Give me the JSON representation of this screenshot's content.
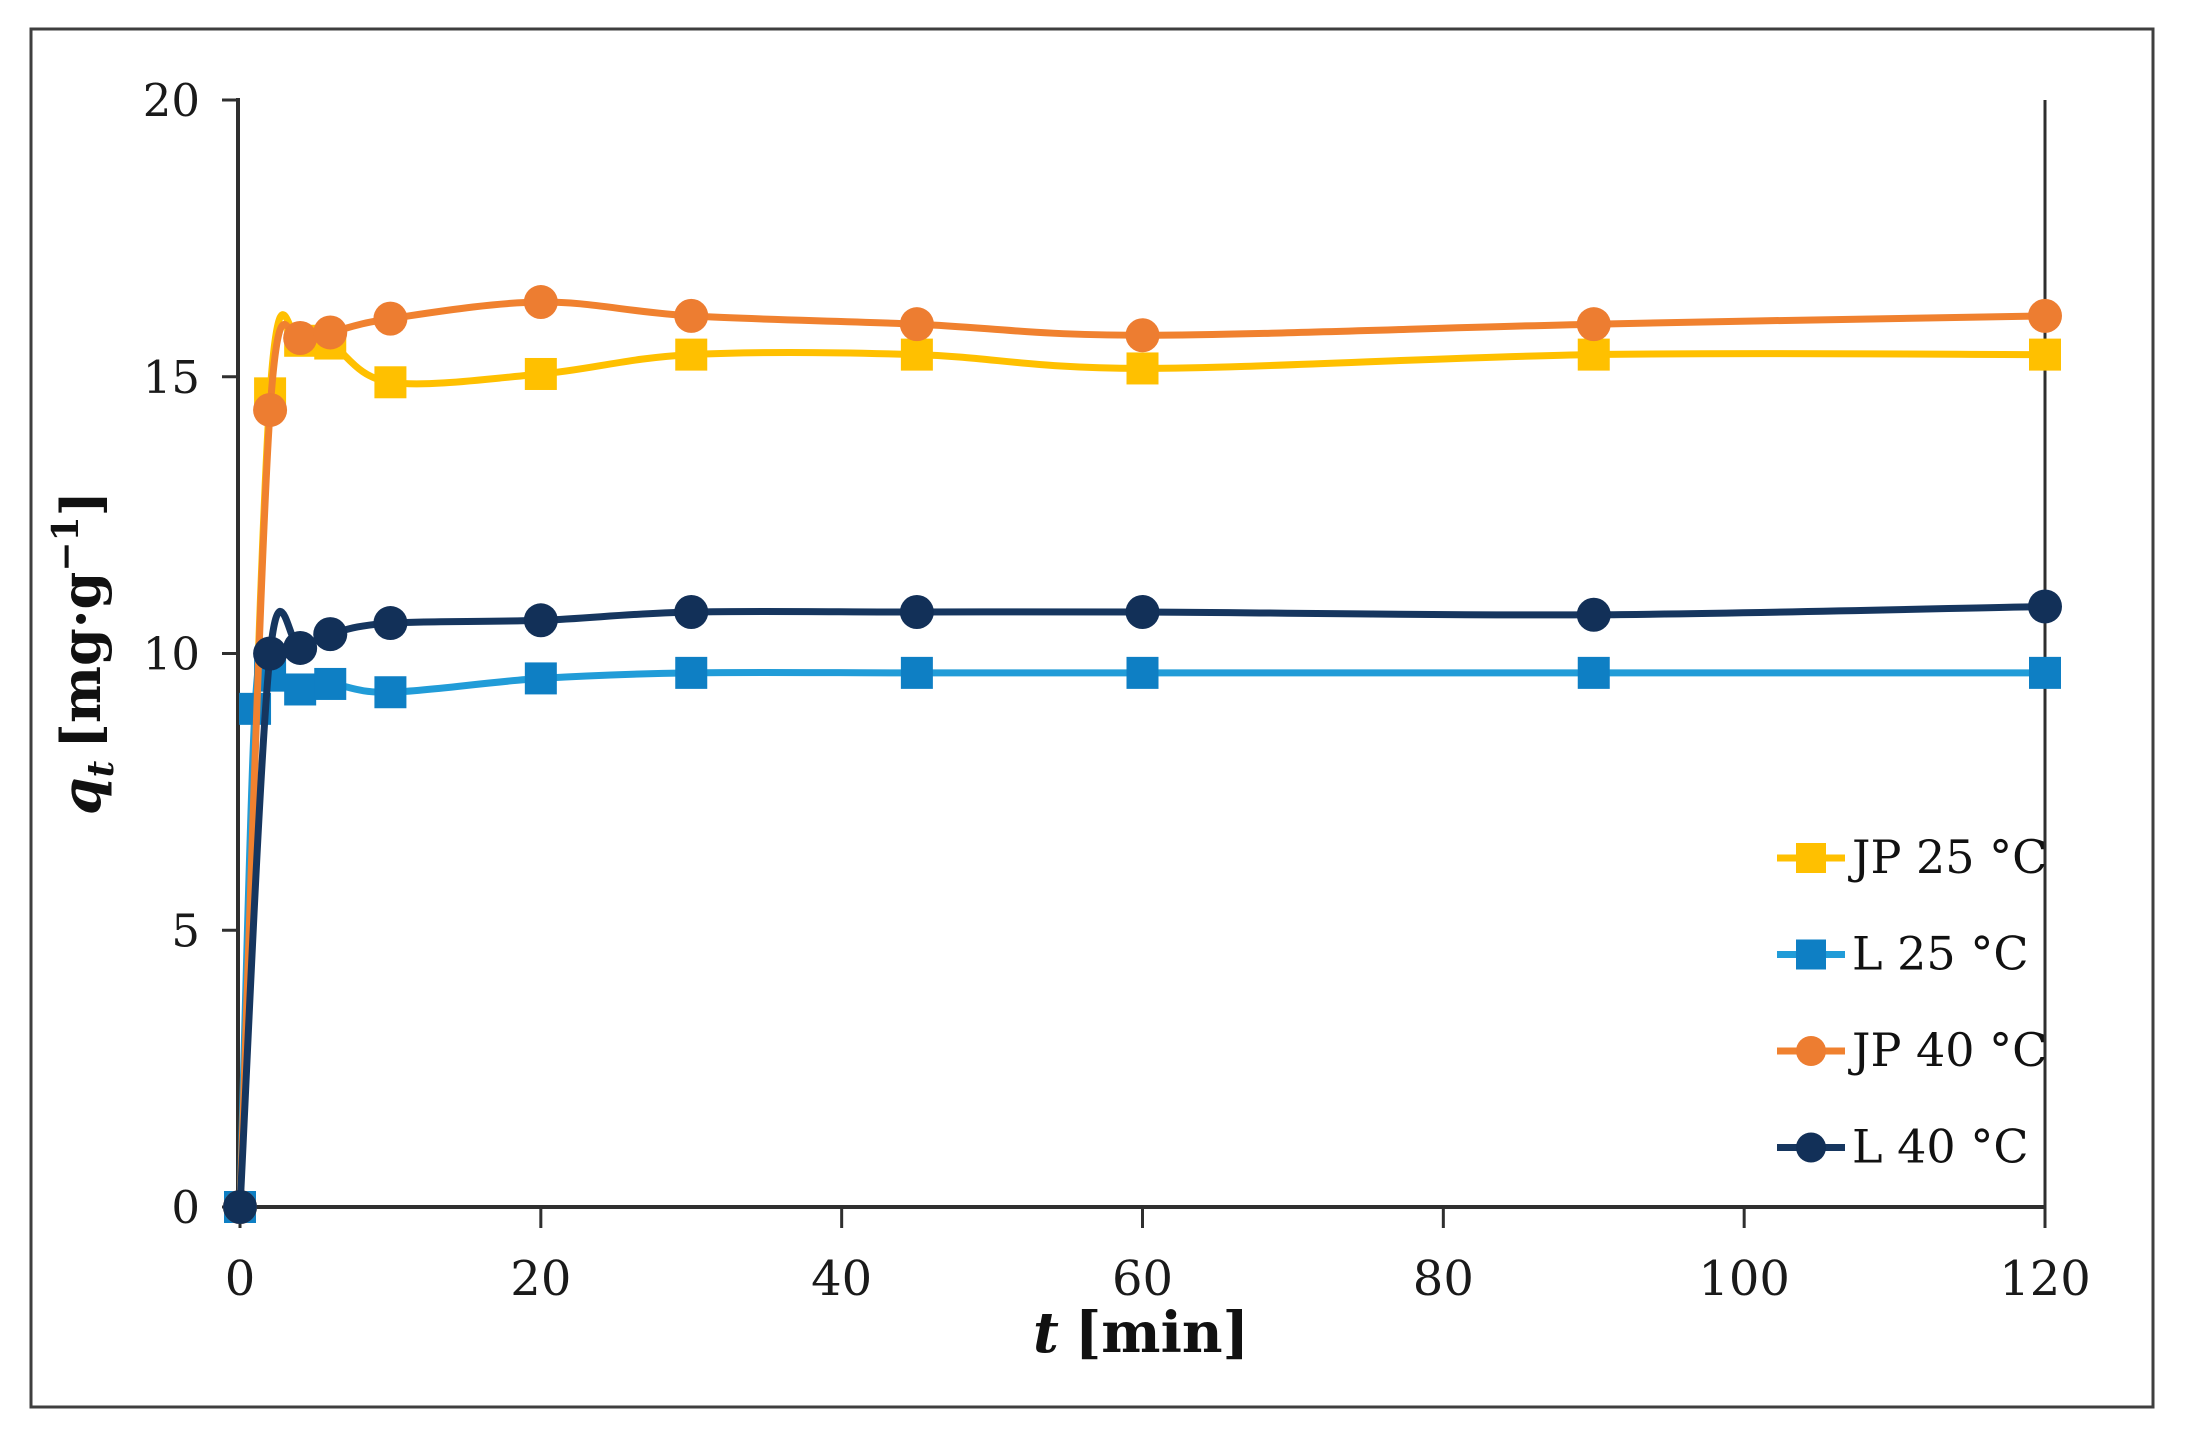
{
  "figure": {
    "background": "#ffffff",
    "border_color": "#3f3f3f",
    "axis_color": "#2f2f2f",
    "text_color": "#1a1a1a"
  },
  "chart_data": {
    "type": "line",
    "title": "",
    "xlabel_text": "t [min]",
    "ylabel_text": "qt [mg·g−1]",
    "xlabel": {
      "var": "t",
      "unit": "[min]"
    },
    "ylabel": {
      "var": "q",
      "sub": "t",
      "unit": "[mg·g",
      "sup": "−1",
      "close": "]"
    },
    "xlim": [
      0,
      120
    ],
    "ylim": [
      0,
      20
    ],
    "xticks": [
      0,
      20,
      40,
      60,
      80,
      100,
      120
    ],
    "yticks": [
      0,
      5,
      10,
      15,
      20
    ],
    "grid": false,
    "legend_position": "inside-right",
    "series": [
      {
        "name": "JP 25 °C",
        "marker": "square",
        "color": "#FFC000",
        "marker_color": "#FFC000",
        "points": [
          [
            0,
            0
          ],
          [
            2,
            14.7
          ],
          [
            4,
            15.65
          ],
          [
            6,
            15.6
          ],
          [
            10,
            14.9
          ],
          [
            20,
            15.05
          ],
          [
            30,
            15.4
          ],
          [
            45,
            15.4
          ],
          [
            60,
            15.15
          ],
          [
            90,
            15.4
          ],
          [
            120,
            15.4
          ]
        ]
      },
      {
        "name": "L 25 °C",
        "marker": "square",
        "color": "#219CD8",
        "marker_color": "#0E7FC4",
        "points": [
          [
            0,
            0
          ],
          [
            1,
            9.0
          ],
          [
            2,
            9.6
          ],
          [
            4,
            9.35
          ],
          [
            6,
            9.45
          ],
          [
            10,
            9.3
          ],
          [
            20,
            9.55
          ],
          [
            30,
            9.65
          ],
          [
            45,
            9.65
          ],
          [
            60,
            9.65
          ],
          [
            90,
            9.65
          ],
          [
            120,
            9.65
          ]
        ]
      },
      {
        "name": "JP 40 °C",
        "marker": "circle",
        "color": "#F0812F",
        "marker_color": "#ED7D31",
        "points": [
          [
            0,
            0
          ],
          [
            2,
            14.4
          ],
          [
            4,
            15.7
          ],
          [
            6,
            15.8
          ],
          [
            10,
            16.05
          ],
          [
            20,
            16.35
          ],
          [
            30,
            16.1
          ],
          [
            45,
            15.95
          ],
          [
            60,
            15.75
          ],
          [
            90,
            15.95
          ],
          [
            120,
            16.1
          ]
        ]
      },
      {
        "name": "L 40 °C",
        "marker": "circle",
        "color": "#16365F",
        "marker_color": "#123058",
        "points": [
          [
            0,
            0
          ],
          [
            2,
            10.0
          ],
          [
            4,
            10.1
          ],
          [
            6,
            10.35
          ],
          [
            10,
            10.55
          ],
          [
            20,
            10.6
          ],
          [
            30,
            10.75
          ],
          [
            45,
            10.75
          ],
          [
            60,
            10.75
          ],
          [
            90,
            10.7
          ],
          [
            120,
            10.85
          ]
        ]
      }
    ]
  }
}
